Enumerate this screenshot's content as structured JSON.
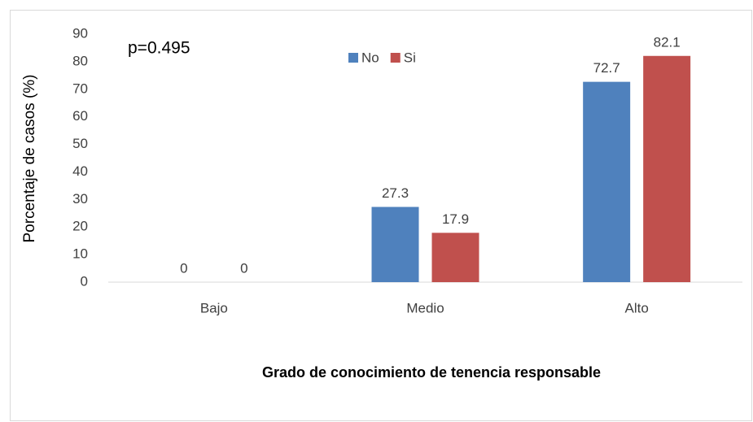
{
  "chart_data": {
    "type": "bar",
    "annotation": "p=0.495",
    "x_label": "Grado de conocimiento de tenencia responsable",
    "y_label": "Porcentaje de casos (%)",
    "categories": [
      "Bajo",
      "Medio",
      "Alto"
    ],
    "series": [
      {
        "name": "No",
        "color": "#4f81bd",
        "values": [
          0,
          27.3,
          72.7
        ]
      },
      {
        "name": "Si",
        "color": "#c0504d",
        "values": [
          0,
          17.9,
          82.1
        ]
      }
    ],
    "ylim": [
      0,
      90
    ],
    "yticks": [
      0,
      10,
      20,
      30,
      40,
      50,
      60,
      70,
      80,
      90
    ],
    "grid": false,
    "legend": "top"
  }
}
